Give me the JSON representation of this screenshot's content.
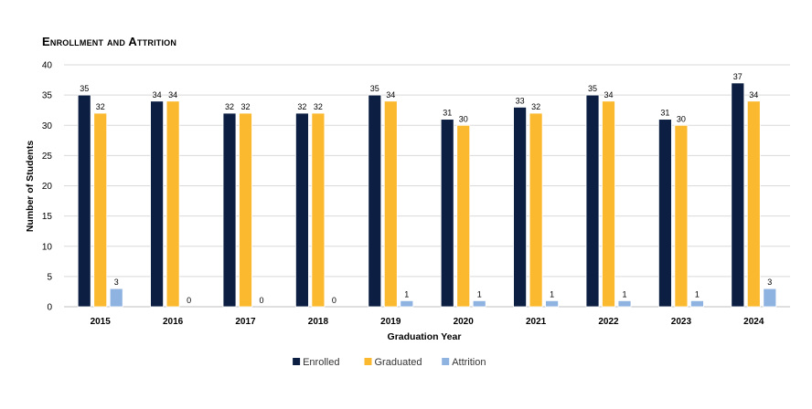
{
  "chart_data": {
    "type": "bar",
    "title": "Enrollment and Attrition",
    "xlabel": "Graduation Year",
    "ylabel": "Number of Students",
    "categories": [
      "2015",
      "2016",
      "2017",
      "2018",
      "2019",
      "2020",
      "2021",
      "2022",
      "2023",
      "2024"
    ],
    "series": [
      {
        "name": "Enrolled",
        "color": "#0c1f42",
        "values": [
          35,
          34,
          32,
          32,
          35,
          31,
          33,
          35,
          31,
          37
        ]
      },
      {
        "name": "Graduated",
        "color": "#fbb92f",
        "values": [
          32,
          34,
          32,
          32,
          34,
          30,
          32,
          34,
          30,
          34
        ]
      },
      {
        "name": "Attrition",
        "color": "#8fb3e0",
        "values": [
          3,
          0,
          0,
          0,
          1,
          1,
          1,
          1,
          1,
          3
        ]
      }
    ],
    "ylim": [
      0,
      40
    ],
    "yticks": [
      0,
      5,
      10,
      15,
      20,
      25,
      30,
      35,
      40
    ],
    "grid": true,
    "legend_position": "bottom",
    "data_labels": true
  }
}
